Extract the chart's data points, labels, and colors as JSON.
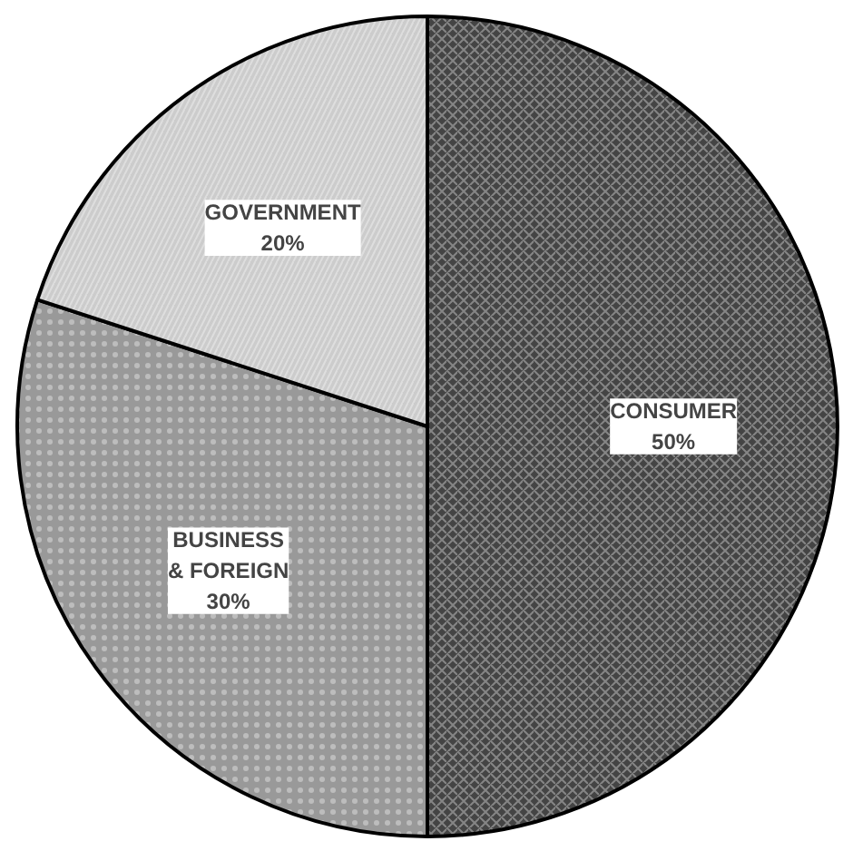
{
  "chart_data": {
    "type": "pie",
    "categories": [
      "CONSUMER",
      "BUSINESS & FOREIGN",
      "GOVERNMENT"
    ],
    "values": [
      50,
      30,
      20
    ],
    "colors": [
      "#444444",
      "#999999",
      "#cccccc"
    ],
    "value_labels": [
      "50%",
      "30%",
      "20%"
    ]
  }
}
